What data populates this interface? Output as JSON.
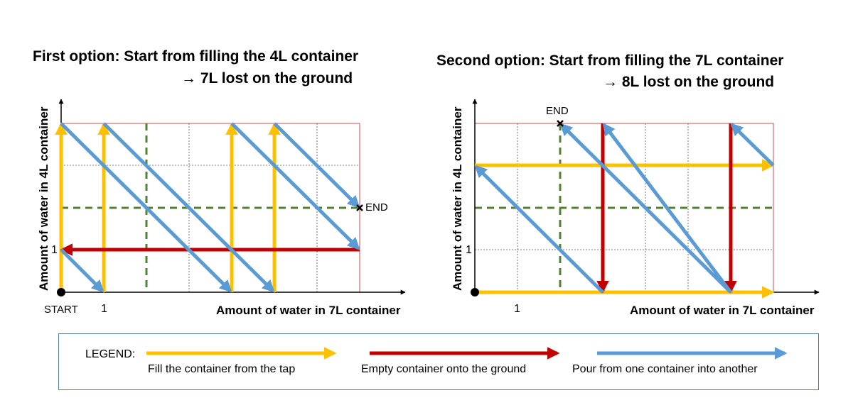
{
  "left_panel": {
    "title": "First option: Start from filling the 4L container",
    "subtitle": "→ 7L lost on the ground",
    "y_label": "Amount of water in 4L container",
    "x_label": "Amount of water in 7L container",
    "tick_x1": "1",
    "tick_y1": "1",
    "start_label": "START",
    "end_label": "END"
  },
  "right_panel": {
    "title": "Second option: Start from filling the 7L container",
    "subtitle": "→ 8L lost on the ground",
    "y_label": "Amount of water in 4L container",
    "x_label": "Amount of water in 7L container",
    "tick_x1": "1",
    "tick_y1": "1",
    "end_label": "END"
  },
  "legend": {
    "title": "LEGEND:",
    "fill": "Fill the container from the tap",
    "empty": "Empty container onto the ground",
    "pour": "Pour from one container into another"
  },
  "colors": {
    "fill": "#ffc000",
    "empty": "#c00000",
    "pour": "#5b9bd5",
    "target_line": "#548235",
    "border": "#c0504d"
  }
}
